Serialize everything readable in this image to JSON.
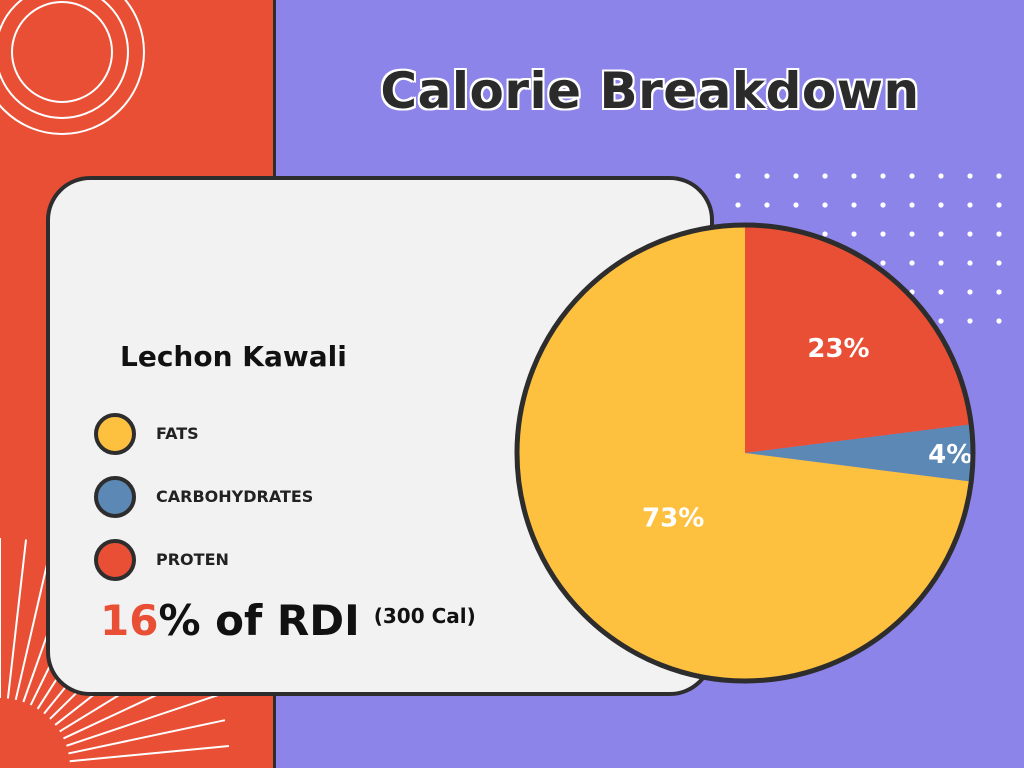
{
  "title": "Calorie Breakdown",
  "food_name": "Lechon Kawali",
  "legend": [
    {
      "label": "FATS",
      "color": "#fdc03f"
    },
    {
      "label": "CARBOHYDRATES",
      "color": "#5b88b5"
    },
    {
      "label": "PROTEN",
      "color": "#e94f35"
    }
  ],
  "rdi": {
    "percent": "16",
    "suffix": "% of RDI",
    "calories": "(300 Cal)"
  },
  "colors": {
    "background": "#8d84ea",
    "accent": "#e94f35",
    "card": "#f2f2f2",
    "outline": "#2d2d2d"
  },
  "chart_data": {
    "type": "pie",
    "title": "Calorie Breakdown",
    "categories": [
      "PROTEN",
      "CARBOHYDRATES",
      "FATS"
    ],
    "values": [
      23,
      4,
      73
    ],
    "labels": [
      "23%",
      "4%",
      "73%"
    ],
    "colors": [
      "#e94f35",
      "#5b88b5",
      "#fdc03f"
    ],
    "legend": "left"
  }
}
